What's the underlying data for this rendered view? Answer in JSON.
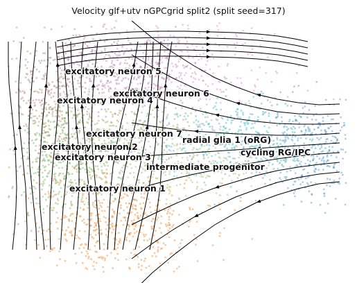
{
  "chart_data": {
    "type": "scatter",
    "title": "Velocity glf+utv nGPCgrid split2 (split seed=317)",
    "xlabel": "",
    "ylabel": "",
    "axes_visible": false,
    "grid": false,
    "legend": "labels on data",
    "overlay": "velocity streamlines with arrowheads (black)",
    "clusters": [
      {
        "label": "excitatory neuron 5",
        "color": "#a77bb0"
      },
      {
        "label": "excitatory neuron 6",
        "color": "#d88ec0"
      },
      {
        "label": "excitatory neuron 4",
        "color": "#b5866e"
      },
      {
        "label": "excitatory neuron 7",
        "color": "#9ea557"
      },
      {
        "label": "radial glia 1 (oRG)",
        "color": "#3fb8c7"
      },
      {
        "label": "cycling RG/IPC",
        "color": "#4c96c9"
      },
      {
        "label": "excitatory neuron 2",
        "color": "#6cb85f"
      },
      {
        "label": "excitatory neuron 3",
        "color": "#8fb16a"
      },
      {
        "label": "intermediate progenitor",
        "color": "#a9c27a"
      },
      {
        "label": "excitatory neuron 1",
        "color": "#f0872a"
      }
    ]
  }
}
